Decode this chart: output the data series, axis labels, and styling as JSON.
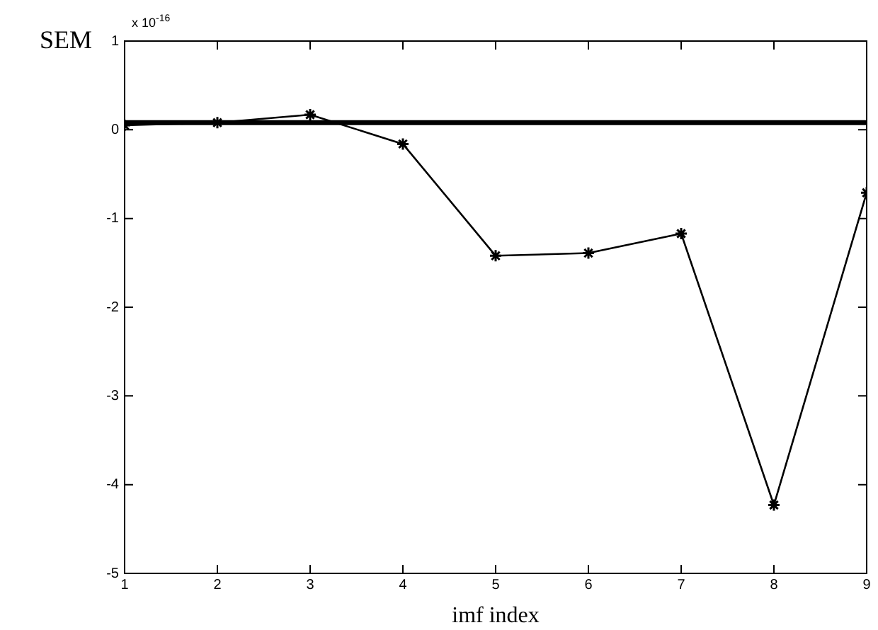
{
  "chart_data": {
    "type": "line",
    "xlabel": "imf index",
    "ylabel": "SEM",
    "annotations": [
      "x 10$^{-16}$"
    ],
    "xlim": [
      1,
      9
    ],
    "xticks": [
      1,
      2,
      3,
      4,
      5,
      6,
      7,
      8,
      9
    ],
    "ylim": [
      -5,
      1
    ],
    "yticks": [
      -5,
      -4,
      -3,
      -2,
      -1,
      0,
      1
    ],
    "grid": false,
    "legend": false,
    "series": [
      {
        "color": "#000000",
        "x": [
          1,
          2,
          3,
          4,
          5,
          6,
          7,
          8,
          9
        ],
        "values": [
          0.05,
          0.08,
          0.17,
          -0.16,
          -1.42,
          -1.39,
          -1.17,
          -4.23,
          -0.71
        ],
        "marker": "cross"
      },
      {
        "color": "#000000",
        "x": [
          1,
          9
        ],
        "values": [
          0.08,
          0.08
        ],
        "marker": "none"
      }
    ]
  }
}
